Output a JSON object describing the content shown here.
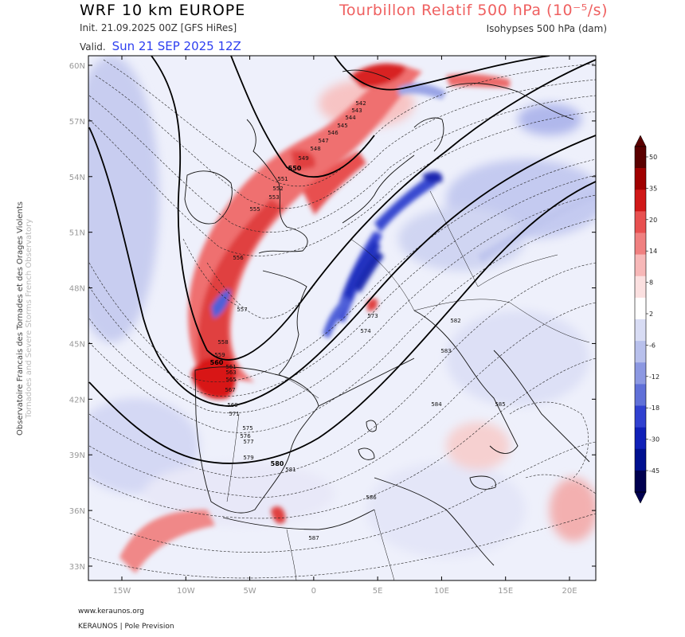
{
  "header": {
    "model_title": "WRF 10 km EUROPE",
    "init_label": "Init.",
    "init_value": "21.09.2025 00Z [GFS HiRes]",
    "valid_label": "Valid.",
    "valid_value": "Sun 21 SEP 2025 12Z",
    "field_title": "Tourbillon Relatif 500 hPa (10⁻⁵/s)",
    "field_subtitle": "Isohypses 500 hPa (dam)"
  },
  "side_text": {
    "line1": "Observatoire Francais des Tornades et des Orages Violents",
    "line2": "Tornadoes and Severe Storms French Observatory"
  },
  "footer": {
    "website": "www.keraunos.org",
    "credit": "KERAUNOS | Pole Prevision"
  },
  "map": {
    "lat_labels": [
      "60N",
      "57N",
      "54N",
      "51N",
      "48N",
      "45N",
      "42N",
      "39N",
      "36N",
      "33N"
    ],
    "lon_labels": [
      "15W",
      "10W",
      "5W",
      "0",
      "5E",
      "10E",
      "15E",
      "20E"
    ],
    "isohypse_labels": [
      "542",
      "543",
      "544",
      "545",
      "546",
      "547",
      "548",
      "549",
      "550",
      "551",
      "552",
      "553",
      "555",
      "556",
      "557",
      "558",
      "559",
      "560",
      "561",
      "563",
      "565",
      "567",
      "569",
      "571",
      "573",
      "574",
      "575",
      "576",
      "577",
      "579",
      "580",
      "581",
      "582",
      "583",
      "584",
      "585",
      "586",
      "587"
    ]
  },
  "colorbar": {
    "labels": [
      "50",
      "35",
      "20",
      "14",
      "8",
      "2",
      "-6",
      "-12",
      "-18",
      "-30",
      "-45"
    ],
    "colors": [
      "#5a0000",
      "#a00000",
      "#d01818",
      "#e85050",
      "#f08080",
      "#f7b8b8",
      "#fbe0e0",
      "#ffffff",
      "#d8dcf4",
      "#b8c0ec",
      "#8c98e2",
      "#6070d8",
      "#3040d0",
      "#1020b8",
      "#001090",
      "#000050"
    ]
  }
}
